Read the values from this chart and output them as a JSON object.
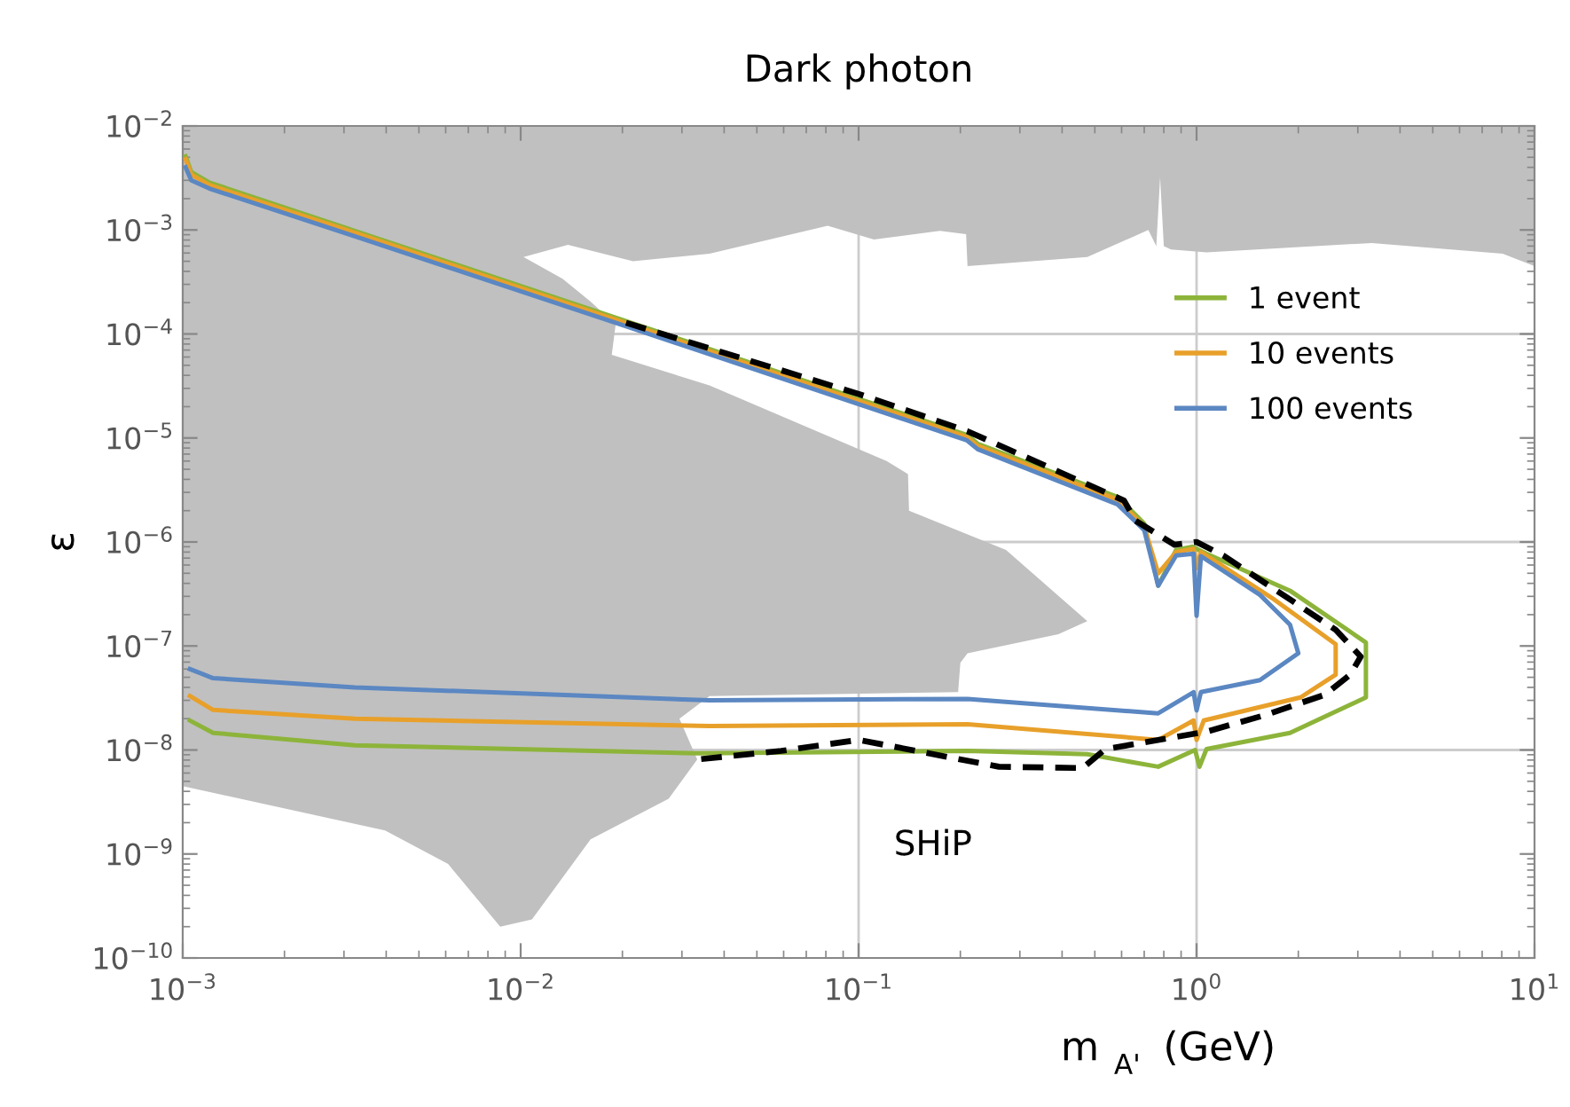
{
  "chart_data": {
    "type": "line",
    "title": "Dark photon",
    "xlabel": "m$_{A'}$ (GeV)",
    "ylabel": "ε",
    "log": "xy",
    "xlim": [
      0.001,
      10
    ],
    "ylim": [
      1e-10,
      0.01
    ],
    "xticks": [
      {
        "value": 0.001,
        "label": "10$^{−3}$"
      },
      {
        "value": 0.01,
        "label": "10$^{−2}$"
      },
      {
        "value": 0.1,
        "label": "10$^{−1}$"
      },
      {
        "value": 1,
        "label": "10$^{0}$"
      },
      {
        "value": 10,
        "label": "10$^{1}$"
      }
    ],
    "yticks": [
      {
        "value": 1e-10,
        "label": "10$^{−10}$"
      },
      {
        "value": 1e-09,
        "label": "10$^{−9}$"
      },
      {
        "value": 1e-08,
        "label": "10$^{−8}$"
      },
      {
        "value": 1e-07,
        "label": "10$^{−7}$"
      },
      {
        "value": 1e-06,
        "label": "10$^{−6}$"
      },
      {
        "value": 1e-05,
        "label": "10$^{−5}$"
      },
      {
        "value": 0.0001,
        "label": "10$^{−4}$"
      },
      {
        "value": 0.001,
        "label": "10$^{−3}$"
      },
      {
        "value": 0.01,
        "label": "10$^{−2}$"
      }
    ],
    "ref_lines": [
      {
        "axis": "x",
        "value": 0.1,
        "color": "#cccccc"
      },
      {
        "axis": "x",
        "value": 1,
        "color": "#cccccc"
      },
      {
        "axis": "y",
        "value": 0.0001,
        "color": "#cccccc"
      },
      {
        "axis": "y",
        "value": 1e-06,
        "color": "#cccccc"
      },
      {
        "axis": "y",
        "value": 1e-08,
        "color": "#cccccc"
      }
    ],
    "legend": "top right",
    "marker": "none",
    "annotations": [
      "SHiP"
    ],
    "series": [
      {
        "type": "area",
        "color": "#c0c0c0",
        "x": [
          0.001,
          10,
          10,
          8.05,
          3.3,
          1.07,
          0.84,
          0.8,
          0.78,
          0.76,
          0.72,
          0.475,
          0.21,
          0.208,
          0.174,
          0.111,
          0.081,
          0.0362,
          0.0215,
          0.0138,
          0.0102,
          0.0133,
          0.0161,
          0.0191,
          0.0186,
          0.0362,
          0.121,
          0.14,
          0.141,
          0.273,
          0.475,
          0.39,
          0.21,
          0.2,
          0.197,
          0.0362,
          0.0295,
          0.0333,
          0.0274,
          0.0161,
          0.0108,
          0.0087,
          0.0061,
          0.00397,
          0.00176,
          0.001
        ],
        "values": [
          0.01,
          0.01,
          0.00045,
          0.00059,
          0.00075,
          0.00061,
          0.00065,
          0.0007,
          0.0032,
          0.0007,
          0.001,
          0.00055,
          0.00045,
          0.00091,
          0.00098,
          0.00081,
          0.0011,
          0.00059,
          0.0005,
          0.00072,
          0.00055,
          0.00034,
          0.000205,
          0.000123,
          6.3e-05,
          3.2e-05,
          6e-06,
          4.5e-06,
          2e-06,
          8.4e-07,
          1.73e-07,
          1.3e-07,
          8.5e-08,
          6.9e-08,
          3.6e-08,
          3.3e-08,
          2e-08,
          8.1e-09,
          3.4e-09,
          1.38e-09,
          2.35e-10,
          2e-10,
          8e-10,
          1.68e-09,
          3e-09,
          4.5e-09
        ]
      },
      {
        "name": "1 event",
        "color": "#8db43a",
        "line_style": "solid",
        "x": [
          0.00102,
          0.00106,
          0.0012,
          0.00323,
          0.0198,
          0.209,
          0.225,
          0.584,
          0.7,
          0.77,
          0.87,
          0.97,
          1.07,
          1.89,
          3.17,
          3.17,
          1.89,
          1.07,
          1.02,
          0.99,
          0.77,
          0.475,
          0.21,
          0.0333,
          0.00323,
          0.00123,
          0.00105
        ],
        "values": [
          0.0051,
          0.0036,
          0.00285,
          0.00098,
          0.000138,
          1.07e-05,
          8.8e-06,
          2.7e-06,
          1.5e-06,
          3.8e-07,
          8.4e-07,
          9e-07,
          7.7e-07,
          3.4e-07,
          1.08e-07,
          3.2e-08,
          1.46e-08,
          1.02e-08,
          6.9e-09,
          1e-08,
          6.9e-09,
          9.1e-09,
          9.8e-09,
          9.3e-09,
          1.11e-08,
          1.46e-08,
          1.92e-08
        ]
      },
      {
        "name": "10 events",
        "color": "#e8a02a",
        "line_style": "solid",
        "x": [
          0.00102,
          0.00106,
          0.0012,
          0.00323,
          0.0198,
          0.209,
          0.225,
          0.584,
          0.7,
          0.77,
          0.87,
          0.98,
          1.0,
          1.03,
          1.67,
          2.58,
          2.58,
          2.03,
          1.05,
          1.0,
          0.98,
          0.77,
          0.21,
          0.0362,
          0.00323,
          0.00123,
          0.00105
        ],
        "values": [
          0.0048,
          0.0034,
          0.0027,
          0.00094,
          0.000132,
          1.02e-05,
          8.4e-06,
          2.55e-06,
          1.4e-06,
          5e-07,
          8e-07,
          8.6e-07,
          5.6e-07,
          8e-07,
          2.9e-07,
          1.04e-07,
          5.3e-08,
          3.2e-08,
          1.92e-08,
          1.25e-08,
          1.92e-08,
          1.25e-08,
          1.77e-08,
          1.7e-08,
          2e-08,
          2.43e-08,
          3.3e-08
        ]
      },
      {
        "name": "100 events",
        "color": "#5b87c2",
        "line_style": "solid",
        "x": [
          0.00102,
          0.00106,
          0.0012,
          0.00323,
          0.0198,
          0.209,
          0.225,
          0.584,
          0.7,
          0.77,
          0.87,
          0.98,
          1.0,
          1.03,
          1.54,
          1.89,
          2.0,
          1.54,
          1.03,
          1.0,
          0.98,
          0.77,
          0.21,
          0.0362,
          0.00323,
          0.00123,
          0.00105
        ],
        "values": [
          0.004,
          0.003,
          0.0025,
          0.00087,
          0.000123,
          9.5e-06,
          7.8e-06,
          2.3e-06,
          1.3e-06,
          3.8e-07,
          7.4e-07,
          7.7e-07,
          1.95e-07,
          7.3e-07,
          3.1e-07,
          1.6e-07,
          8.5e-08,
          4.7e-08,
          3.6e-08,
          2.4e-08,
          3.6e-08,
          2.25e-08,
          3.1e-08,
          3e-08,
          4e-08,
          4.9e-08,
          6e-08
        ]
      },
      {
        "color": "#000000",
        "line_style": "dashed",
        "x": [
          0.0205,
          0.1,
          0.21,
          0.61,
          0.66,
          0.86,
          1.0,
          1.2,
          1.89,
          2.58,
          3.06,
          2.85,
          2.4,
          1.59,
          1.07,
          0.537,
          0.46,
          0.26,
          0.1,
          0.059,
          0.0333
        ],
        "values": [
          0.000128,
          2.65e-05,
          1.16e-05,
          2.5e-06,
          1.6e-06,
          9.4e-07,
          1e-06,
          7.4e-07,
          2.8e-07,
          1.43e-07,
          7.9e-08,
          5.3e-08,
          3.4e-08,
          2.16e-08,
          1.5e-08,
          1.02e-08,
          6.7e-09,
          6.9e-09,
          1.25e-08,
          9.8e-09,
          8.1e-09
        ]
      }
    ]
  }
}
